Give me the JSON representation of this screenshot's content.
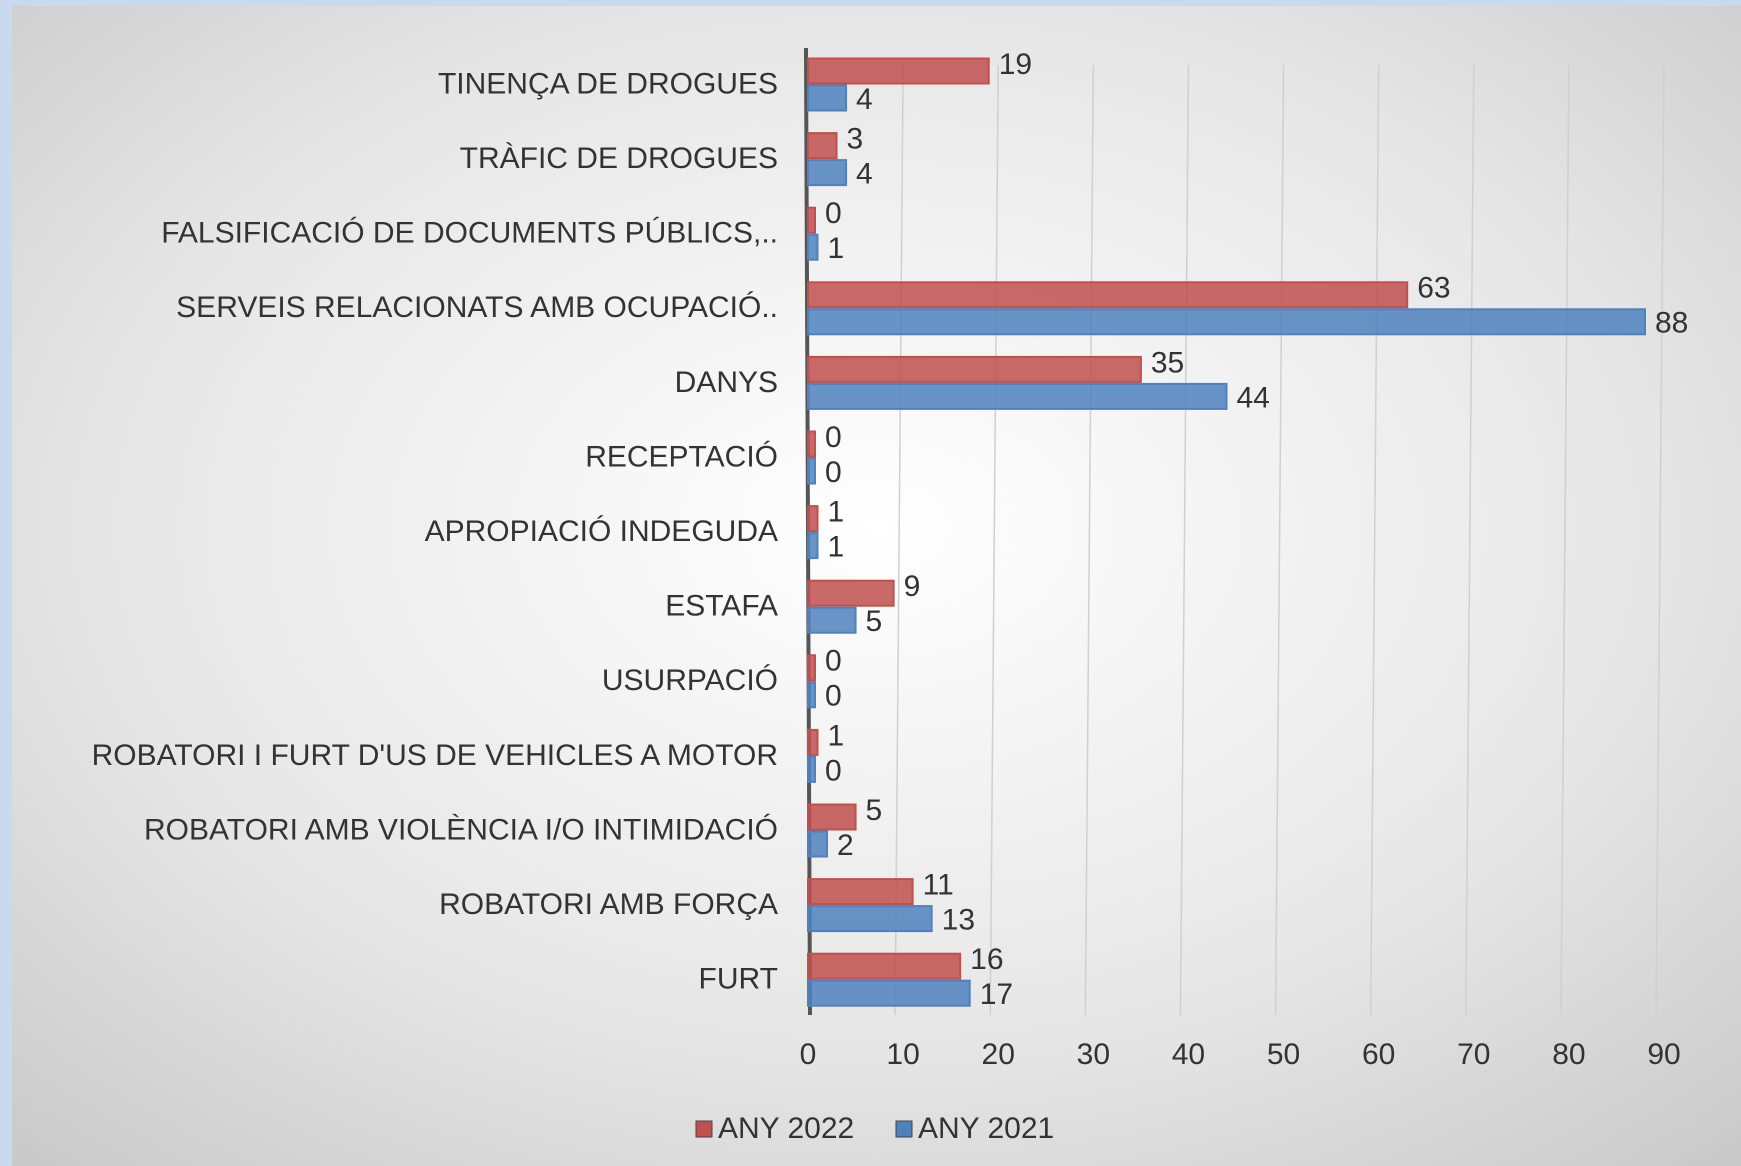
{
  "chart_data": {
    "type": "bar",
    "orientation": "horizontal",
    "categories": [
      "TINENÇA DE DROGUES",
      "TRÀFIC DE DROGUES",
      "FALSIFICACIÓ DE DOCUMENTS PÚBLICS,..",
      "SERVEIS RELACIONATS AMB OCUPACIÓ..",
      "DANYS",
      "RECEPTACIÓ",
      "APROPIACIÓ INDEGUDA",
      "ESTAFA",
      "USURPACIÓ",
      "ROBATORI I FURT D'US DE VEHICLES A MOTOR",
      "ROBATORI AMB VIOLÈNCIA I/O INTIMIDACIÓ",
      "ROBATORI AMB FORÇA",
      "FURT"
    ],
    "series": [
      {
        "name": "ANY 2022",
        "color": "#c0504d",
        "values": [
          19,
          3,
          0,
          63,
          35,
          0,
          1,
          9,
          0,
          1,
          5,
          11,
          16
        ]
      },
      {
        "name": "ANY 2021",
        "color": "#4f81bd",
        "values": [
          4,
          4,
          1,
          88,
          44,
          0,
          1,
          5,
          0,
          0,
          2,
          13,
          17
        ]
      }
    ],
    "xlim": [
      0,
      90
    ],
    "xticks": [
      0,
      10,
      20,
      30,
      40,
      50,
      60,
      70,
      80,
      90
    ],
    "grid": true,
    "legend": "bottom"
  }
}
